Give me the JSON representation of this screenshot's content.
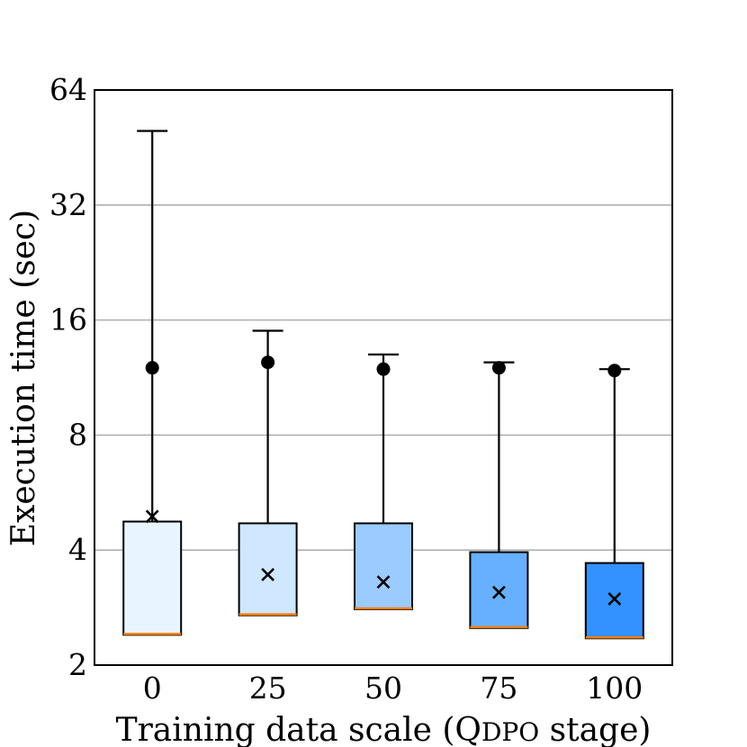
{
  "chart_data": {
    "type": "box",
    "title": "",
    "xlabel_prefix": "Training data scale (Q",
    "xlabel_smallcaps": "DPO",
    "xlabel_suffix": " stage)",
    "ylabel": "Execution time (sec)",
    "yscale": "log2",
    "ylim": [
      2,
      64
    ],
    "yticks": [
      2,
      4,
      8,
      16,
      32,
      64
    ],
    "ytick_labels": [
      "2",
      "4",
      "8",
      "16",
      "32",
      "64"
    ],
    "grid": "horizontal",
    "categories": [
      "0",
      "25",
      "50",
      "75",
      "100"
    ],
    "box_colors": [
      "#e8f4ff",
      "#cfe7ff",
      "#9ccbff",
      "#66b0ff",
      "#3392ff"
    ],
    "median_color": "#ff7f0e",
    "series": [
      {
        "category": "0",
        "q1": 2.4,
        "median": 2.4,
        "q3": 4.75,
        "whisker_low": 2.4,
        "whisker_high": 50,
        "mean": 4.9,
        "outlier": 12.0
      },
      {
        "category": "25",
        "q1": 2.7,
        "median": 2.7,
        "q3": 4.7,
        "whisker_low": 2.7,
        "whisker_high": 15,
        "mean": 3.45,
        "outlier": 12.4
      },
      {
        "category": "50",
        "q1": 2.8,
        "median": 2.8,
        "q3": 4.7,
        "whisker_low": 2.8,
        "whisker_high": 13,
        "mean": 3.3,
        "outlier": 11.9
      },
      {
        "category": "75",
        "q1": 2.5,
        "median": 2.5,
        "q3": 3.95,
        "whisker_low": 2.5,
        "whisker_high": 12.4,
        "mean": 3.1,
        "outlier": 12.0
      },
      {
        "category": "100",
        "q1": 2.35,
        "median": 2.35,
        "q3": 3.7,
        "whisker_low": 2.35,
        "whisker_high": 11.9,
        "mean": 2.98,
        "outlier": 11.8
      }
    ]
  }
}
